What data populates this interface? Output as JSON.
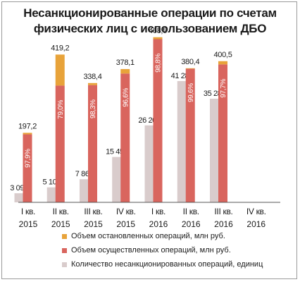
{
  "title_lines": [
    "Несанкционированные операции по счетам",
    "физических лиц с использованием ДБО"
  ],
  "colors": {
    "stopped": "#E8A33A",
    "completed": "#D9655E",
    "count": "#D9CCCC",
    "text": "#1a1a1a",
    "pct_text": "#ffffff"
  },
  "chart_data": {
    "type": "bar",
    "title": "Несанкционированные операции по счетам физических лиц с использованием ДБО",
    "categories": [
      [
        "I кв.",
        "2015"
      ],
      [
        "II кв.",
        "2015"
      ],
      [
        "III кв.",
        "2015"
      ],
      [
        "IV кв.",
        "2015"
      ],
      [
        "I кв.",
        "2016"
      ],
      [
        "II кв.",
        "2016"
      ],
      [
        "III кв.",
        "2016"
      ],
      [
        "IV кв.",
        "2016"
      ]
    ],
    "series": [
      {
        "name": "Количество несанкционированных операций, единиц",
        "key": "count",
        "values": [
          3092,
          5104,
          7867,
          15451,
          26201,
          41282,
          35284,
          null
        ],
        "labels": [
          "3 092",
          "5 104",
          "7 867",
          "15 451",
          "26 201",
          "41 282",
          "35 284",
          null
        ]
      },
      {
        "name": "Объем осуществленных операций, млн руб.",
        "key": "completed",
        "values": [
          192.9,
          331.2,
          332.6,
          365.4,
          463.0,
          378.9,
          391.3,
          null
        ],
        "share_labels": [
          "97,9%",
          "79,0%",
          "98,3%",
          "96,6%",
          "98,8%",
          "99,6%",
          "97,7%",
          null
        ]
      },
      {
        "name": "Объем остановленных операций, млн руб.",
        "key": "stopped",
        "values": [
          4.3,
          88.0,
          5.8,
          12.7,
          5.5,
          1.5,
          9.2,
          null
        ]
      }
    ],
    "totals": [
      "197,2",
      "419,2",
      "338,4",
      "378,1",
      "468,5",
      "380,4",
      "400,5",
      null
    ],
    "legend": [
      "Объем остановленных операций, млн руб.",
      "Объем осуществленных операций, млн руб.",
      "Количество несанкционированных операций, единиц"
    ],
    "legend_position": "bottom",
    "grid": false
  }
}
